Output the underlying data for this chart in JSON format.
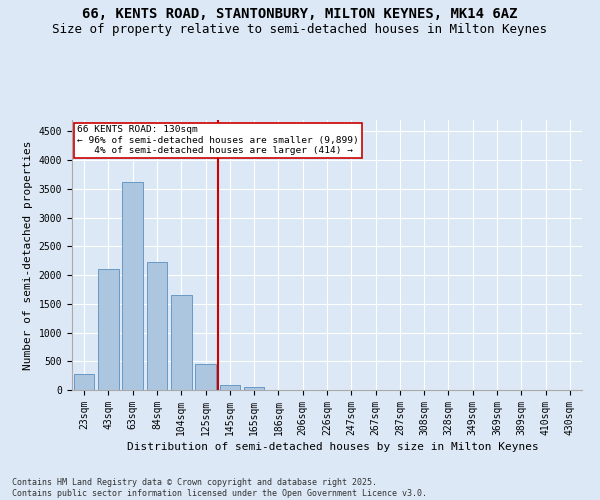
{
  "title_line1": "66, KENTS ROAD, STANTONBURY, MILTON KEYNES, MK14 6AZ",
  "title_line2": "Size of property relative to semi-detached houses in Milton Keynes",
  "xlabel": "Distribution of semi-detached houses by size in Milton Keynes",
  "ylabel": "Number of semi-detached properties",
  "footnote": "Contains HM Land Registry data © Crown copyright and database right 2025.\nContains public sector information licensed under the Open Government Licence v3.0.",
  "bar_labels": [
    "23sqm",
    "43sqm",
    "63sqm",
    "84sqm",
    "104sqm",
    "125sqm",
    "145sqm",
    "165sqm",
    "186sqm",
    "206sqm",
    "226sqm",
    "247sqm",
    "267sqm",
    "287sqm",
    "308sqm",
    "328sqm",
    "349sqm",
    "369sqm",
    "389sqm",
    "410sqm",
    "430sqm"
  ],
  "bar_values": [
    275,
    2100,
    3620,
    2230,
    1650,
    450,
    95,
    45,
    0,
    0,
    0,
    0,
    0,
    0,
    0,
    0,
    0,
    0,
    0,
    0,
    0
  ],
  "bar_color": "#adc6e0",
  "bar_edge_color": "#5a8fc0",
  "background_color": "#dce8f5",
  "grid_color": "#ffffff",
  "vline_x": 5.5,
  "vline_color": "#cc0000",
  "annotation_text": "66 KENTS ROAD: 130sqm\n← 96% of semi-detached houses are smaller (9,899)\n   4% of semi-detached houses are larger (414) →",
  "annotation_box_color": "#ffffff",
  "annotation_box_edge": "#cc0000",
  "ylim": [
    0,
    4700
  ],
  "yticks": [
    0,
    500,
    1000,
    1500,
    2000,
    2500,
    3000,
    3500,
    4000,
    4500
  ],
  "title_fontsize": 10,
  "subtitle_fontsize": 9,
  "axis_fontsize": 8,
  "tick_fontsize": 7,
  "footnote_fontsize": 6
}
